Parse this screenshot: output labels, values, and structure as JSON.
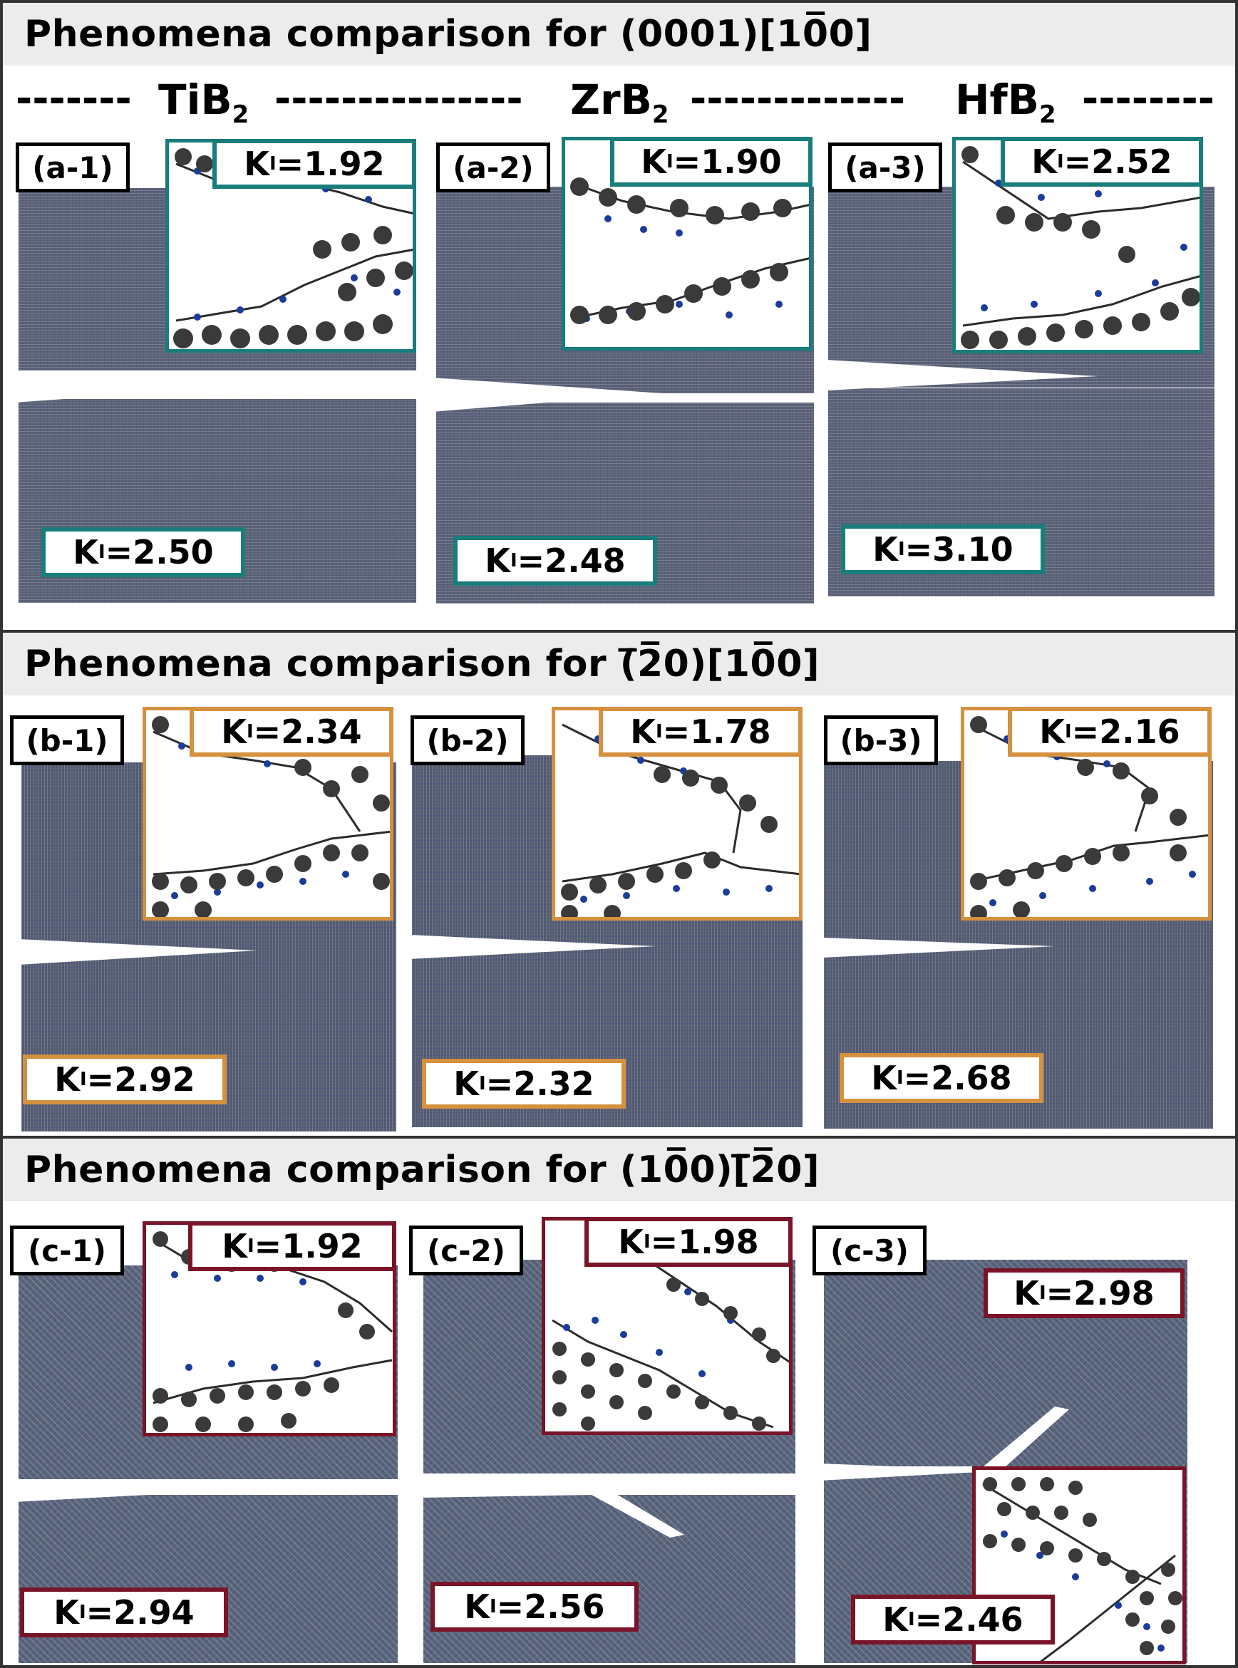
{
  "colors": {
    "section_a": "#197d7c",
    "section_b": "#d6913f",
    "section_c": "#7a1428",
    "atom_metal": "#3a3a3a",
    "atom_boron": "#1c3b9a",
    "lattice": "#5b6275"
  },
  "sections": [
    {
      "title": "Phenomena comparison for (0001)[10̅0]",
      "materials": [
        "TiB2",
        "ZrB2",
        "HfB2"
      ],
      "panels": [
        {
          "label": "(a-1)",
          "inset_k": "1.92",
          "main_k": "2.50"
        },
        {
          "label": "(a-2)",
          "inset_k": "1.90",
          "main_k": "2.48"
        },
        {
          "label": "(a-3)",
          "inset_k": "2.52",
          "main_k": "3.10"
        }
      ]
    },
    {
      "title": "Phenomena comparison for (̅2̅0)[10̅0]",
      "panels": [
        {
          "label": "(b-1)",
          "inset_k": "2.34",
          "main_k": "2.92"
        },
        {
          "label": "(b-2)",
          "inset_k": "1.78",
          "main_k": "2.32"
        },
        {
          "label": "(b-3)",
          "inset_k": "2.16",
          "main_k": "2.68"
        }
      ]
    },
    {
      "title": "Phenomena comparison for (10̅0)[̅2̅0]",
      "panels": [
        {
          "label": "(c-1)",
          "inset_k": "1.92",
          "main_k": "2.94"
        },
        {
          "label": "(c-2)",
          "inset_k": "1.98",
          "main_k": "2.56"
        },
        {
          "label": "(c-3)",
          "inset_k": "2.98",
          "main_k": "2.46"
        }
      ]
    }
  ],
  "k_prefix": "K",
  "k_subscript": "I",
  "k_equals": " = "
}
